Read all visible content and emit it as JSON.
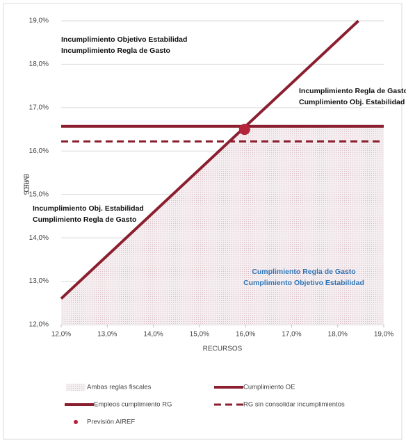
{
  "chart_data": {
    "type": "line",
    "x_label": "RECURSOS",
    "y_label": "EMPLEOS",
    "xlim": [
      12,
      19
    ],
    "ylim": [
      12,
      19
    ],
    "xticks": [
      {
        "value": 12,
        "label": "12,0%"
      },
      {
        "value": 13,
        "label": "13,0%"
      },
      {
        "value": 14,
        "label": "14,0%"
      },
      {
        "value": 15,
        "label": "15,0%"
      },
      {
        "value": 16,
        "label": "16,0%"
      },
      {
        "value": 17,
        "label": "17,0%"
      },
      {
        "value": 18,
        "label": "18,0%"
      },
      {
        "value": 19,
        "label": "19,0%"
      }
    ],
    "yticks": [
      {
        "value": 12,
        "label": "12,0%"
      },
      {
        "value": 13,
        "label": "13,0%"
      },
      {
        "value": 14,
        "label": "14,0%"
      },
      {
        "value": 15,
        "label": "15,0%"
      },
      {
        "value": 16,
        "label": "16,0%"
      },
      {
        "value": 17,
        "label": "17,0%"
      },
      {
        "value": 18,
        "label": "18,0%"
      },
      {
        "value": 19,
        "label": "19,0%"
      }
    ],
    "grid": true,
    "series": [
      {
        "name": "Ambas reglas fiscales",
        "kind": "area",
        "color": "#f0e4e8",
        "x": [
          12,
          16,
          19
        ],
        "values": [
          12.6,
          16.57,
          16.57
        ]
      },
      {
        "name": "Cumplimiento OE",
        "kind": "line",
        "color": "#8b1f2f",
        "x": [
          12,
          18.45
        ],
        "values": [
          12.6,
          19
        ]
      },
      {
        "name": "Empleos cumplimiento RG",
        "kind": "line",
        "color": "#8b1f2f",
        "x": [
          12,
          19
        ],
        "values": [
          16.57,
          16.57
        ]
      },
      {
        "name": "RG sin consolidar incumplimientos",
        "kind": "line",
        "dashed": true,
        "color": "#8b1f2f",
        "x": [
          12,
          19
        ],
        "values": [
          16.22,
          16.22
        ]
      },
      {
        "name": "Previsión AIREF",
        "kind": "scatter",
        "color": "#b3243a",
        "x": [
          15.98
        ],
        "values": [
          16.5
        ]
      }
    ],
    "annotations": [
      {
        "lines": [
          "Incumplimiento Objetivo Estabilidad",
          "Incumplimiento Regla de Gasto"
        ],
        "color": "#111111"
      },
      {
        "lines": [
          "Incumplimiento Regla de Gasto",
          "Cumplimiento Obj. Estabilidad"
        ],
        "color": "#111111"
      },
      {
        "lines": [
          "Incumplimiento Obj. Estabilidad",
          "Cumplimiento Regla de Gasto"
        ],
        "color": "#111111"
      },
      {
        "lines": [
          "Cumplimiento Regla de Gasto",
          "Cumplimiento Objetivo Estabilidad"
        ],
        "color": "#2e75b6"
      }
    ]
  }
}
